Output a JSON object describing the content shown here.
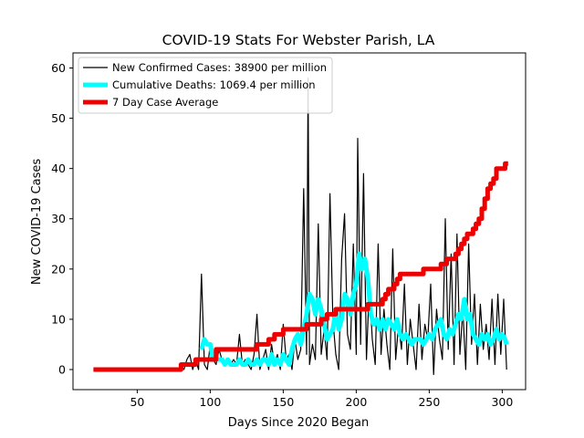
{
  "chart_data": {
    "type": "line",
    "title": "COVID-19 Stats For Webster Parish, LA",
    "xlabel": "Days Since 2020 Began",
    "ylabel": "New COVID-19 Cases",
    "xlim": [
      6,
      316
    ],
    "ylim": [
      -4,
      63
    ],
    "xticks": [
      50,
      100,
      150,
      200,
      250,
      300
    ],
    "yticks": [
      0,
      10,
      20,
      30,
      40,
      50,
      60
    ],
    "grid": false,
    "legend_position": "top-left",
    "series": [
      {
        "name": "New Confirmed Cases: 38900 per million",
        "color": "#000000",
        "width": 1.2,
        "points": [
          [
            20,
            0
          ],
          [
            78,
            0
          ],
          [
            80,
            1
          ],
          [
            82,
            0
          ],
          [
            84,
            2
          ],
          [
            86,
            3
          ],
          [
            88,
            0
          ],
          [
            90,
            2
          ],
          [
            92,
            0
          ],
          [
            94,
            19
          ],
          [
            96,
            1
          ],
          [
            98,
            0
          ],
          [
            100,
            5
          ],
          [
            102,
            2
          ],
          [
            104,
            1
          ],
          [
            106,
            4
          ],
          [
            108,
            2
          ],
          [
            110,
            1
          ],
          [
            112,
            2
          ],
          [
            114,
            1
          ],
          [
            116,
            2
          ],
          [
            118,
            1
          ],
          [
            120,
            7
          ],
          [
            122,
            1
          ],
          [
            124,
            2
          ],
          [
            126,
            1
          ],
          [
            128,
            0
          ],
          [
            130,
            3
          ],
          [
            132,
            11
          ],
          [
            134,
            0
          ],
          [
            136,
            2
          ],
          [
            138,
            4
          ],
          [
            140,
            0
          ],
          [
            142,
            5
          ],
          [
            144,
            1
          ],
          [
            146,
            3
          ],
          [
            148,
            0
          ],
          [
            150,
            9
          ],
          [
            152,
            2
          ],
          [
            154,
            3
          ],
          [
            156,
            0
          ],
          [
            158,
            6
          ],
          [
            160,
            2
          ],
          [
            162,
            4
          ],
          [
            164,
            36
          ],
          [
            166,
            3
          ],
          [
            167,
            58
          ],
          [
            168,
            1
          ],
          [
            170,
            5
          ],
          [
            172,
            2
          ],
          [
            174,
            29
          ],
          [
            176,
            3
          ],
          [
            178,
            8
          ],
          [
            180,
            2
          ],
          [
            182,
            35
          ],
          [
            184,
            10
          ],
          [
            186,
            3
          ],
          [
            188,
            0
          ],
          [
            190,
            22
          ],
          [
            192,
            31
          ],
          [
            194,
            7
          ],
          [
            196,
            4
          ],
          [
            198,
            25
          ],
          [
            200,
            3
          ],
          [
            201,
            46
          ],
          [
            203,
            5
          ],
          [
            205,
            39
          ],
          [
            207,
            2
          ],
          [
            209,
            17
          ],
          [
            211,
            6
          ],
          [
            213,
            1
          ],
          [
            215,
            25
          ],
          [
            217,
            3
          ],
          [
            219,
            12
          ],
          [
            221,
            5
          ],
          [
            223,
            0
          ],
          [
            225,
            24
          ],
          [
            227,
            2
          ],
          [
            229,
            9
          ],
          [
            231,
            4
          ],
          [
            233,
            17
          ],
          [
            235,
            1
          ],
          [
            237,
            10
          ],
          [
            239,
            5
          ],
          [
            241,
            0
          ],
          [
            243,
            13
          ],
          [
            245,
            2
          ],
          [
            247,
            9
          ],
          [
            249,
            6
          ],
          [
            251,
            17
          ],
          [
            253,
            -1
          ],
          [
            255,
            12
          ],
          [
            257,
            6
          ],
          [
            259,
            2
          ],
          [
            261,
            30
          ],
          [
            263,
            4
          ],
          [
            265,
            23
          ],
          [
            267,
            1
          ],
          [
            269,
            27
          ],
          [
            271,
            3
          ],
          [
            273,
            12
          ],
          [
            275,
            0
          ],
          [
            277,
            25
          ],
          [
            279,
            5
          ],
          [
            281,
            15
          ],
          [
            283,
            1
          ],
          [
            285,
            13
          ],
          [
            287,
            4
          ],
          [
            289,
            9
          ],
          [
            291,
            2
          ],
          [
            293,
            14
          ],
          [
            295,
            1
          ],
          [
            297,
            15
          ],
          [
            299,
            3
          ],
          [
            301,
            14
          ],
          [
            303,
            0
          ]
        ]
      },
      {
        "name": "Cumulative Deaths: 1069.4 per million",
        "color": "#00ffff",
        "width": 5,
        "points": [
          [
            94,
            4
          ],
          [
            96,
            6
          ],
          [
            98,
            5
          ],
          [
            100,
            5
          ],
          [
            102,
            2
          ],
          [
            104,
            2
          ],
          [
            106,
            2
          ],
          [
            108,
            2
          ],
          [
            110,
            1
          ],
          [
            112,
            2
          ],
          [
            114,
            1
          ],
          [
            116,
            1
          ],
          [
            118,
            1
          ],
          [
            120,
            2
          ],
          [
            122,
            1
          ],
          [
            124,
            1
          ],
          [
            126,
            2
          ],
          [
            128,
            1
          ],
          [
            130,
            1
          ],
          [
            132,
            2
          ],
          [
            134,
            1
          ],
          [
            136,
            2
          ],
          [
            138,
            2
          ],
          [
            140,
            1
          ],
          [
            142,
            3
          ],
          [
            144,
            1
          ],
          [
            146,
            2
          ],
          [
            148,
            1
          ],
          [
            150,
            3
          ],
          [
            152,
            2
          ],
          [
            154,
            1
          ],
          [
            156,
            4
          ],
          [
            158,
            6
          ],
          [
            160,
            7
          ],
          [
            162,
            5
          ],
          [
            164,
            8
          ],
          [
            166,
            11
          ],
          [
            168,
            15
          ],
          [
            170,
            14
          ],
          [
            172,
            11
          ],
          [
            174,
            14
          ],
          [
            176,
            12
          ],
          [
            178,
            9
          ],
          [
            180,
            6
          ],
          [
            182,
            7
          ],
          [
            184,
            8
          ],
          [
            186,
            12
          ],
          [
            188,
            8
          ],
          [
            190,
            10
          ],
          [
            192,
            15
          ],
          [
            194,
            14
          ],
          [
            196,
            11
          ],
          [
            198,
            15
          ],
          [
            200,
            17
          ],
          [
            202,
            23
          ],
          [
            204,
            20
          ],
          [
            206,
            22
          ],
          [
            208,
            18
          ],
          [
            210,
            11
          ],
          [
            212,
            9
          ],
          [
            214,
            10
          ],
          [
            216,
            8
          ],
          [
            218,
            10
          ],
          [
            220,
            8
          ],
          [
            222,
            10
          ],
          [
            224,
            9
          ],
          [
            226,
            8
          ],
          [
            228,
            10
          ],
          [
            230,
            7
          ],
          [
            232,
            6
          ],
          [
            234,
            7
          ],
          [
            236,
            6
          ],
          [
            238,
            5
          ],
          [
            240,
            6
          ],
          [
            242,
            6
          ],
          [
            244,
            6
          ],
          [
            246,
            5
          ],
          [
            248,
            6
          ],
          [
            250,
            7
          ],
          [
            252,
            6
          ],
          [
            254,
            8
          ],
          [
            256,
            9
          ],
          [
            258,
            10
          ],
          [
            260,
            7
          ],
          [
            262,
            6
          ],
          [
            264,
            8
          ],
          [
            266,
            7
          ],
          [
            268,
            9
          ],
          [
            270,
            11
          ],
          [
            272,
            10
          ],
          [
            274,
            14
          ],
          [
            276,
            10
          ],
          [
            278,
            11
          ],
          [
            280,
            7
          ],
          [
            282,
            6
          ],
          [
            284,
            5
          ],
          [
            286,
            7
          ],
          [
            288,
            6
          ],
          [
            290,
            7
          ],
          [
            292,
            5
          ],
          [
            294,
            6
          ],
          [
            296,
            8
          ],
          [
            298,
            6
          ],
          [
            300,
            7
          ],
          [
            302,
            6
          ],
          [
            303,
            5
          ]
        ]
      },
      {
        "name": "7 Day Case Average",
        "color": "#ee0000",
        "width": 5,
        "points": [
          [
            20,
            0
          ],
          [
            80,
            0
          ],
          [
            80,
            1
          ],
          [
            90,
            1
          ],
          [
            90,
            2
          ],
          [
            104,
            2
          ],
          [
            104,
            4
          ],
          [
            132,
            4
          ],
          [
            132,
            5
          ],
          [
            140,
            5
          ],
          [
            140,
            6
          ],
          [
            144,
            6
          ],
          [
            144,
            7
          ],
          [
            150,
            7
          ],
          [
            150,
            8
          ],
          [
            166,
            8
          ],
          [
            166,
            9
          ],
          [
            176,
            9
          ],
          [
            176,
            10
          ],
          [
            180,
            10
          ],
          [
            180,
            11
          ],
          [
            186,
            11
          ],
          [
            186,
            12
          ],
          [
            208,
            12
          ],
          [
            208,
            13
          ],
          [
            218,
            13
          ],
          [
            218,
            14
          ],
          [
            220,
            14
          ],
          [
            220,
            15
          ],
          [
            222,
            15
          ],
          [
            222,
            16
          ],
          [
            226,
            16
          ],
          [
            226,
            17
          ],
          [
            228,
            17
          ],
          [
            228,
            18
          ],
          [
            230,
            18
          ],
          [
            230,
            19
          ],
          [
            246,
            19
          ],
          [
            246,
            20
          ],
          [
            258,
            20
          ],
          [
            258,
            21
          ],
          [
            262,
            21
          ],
          [
            262,
            22
          ],
          [
            268,
            22
          ],
          [
            268,
            23
          ],
          [
            270,
            23
          ],
          [
            270,
            24
          ],
          [
            272,
            24
          ],
          [
            272,
            25
          ],
          [
            274,
            25
          ],
          [
            274,
            26
          ],
          [
            276,
            26
          ],
          [
            276,
            27
          ],
          [
            280,
            27
          ],
          [
            280,
            28
          ],
          [
            282,
            28
          ],
          [
            282,
            29
          ],
          [
            284,
            29
          ],
          [
            284,
            30
          ],
          [
            286,
            30
          ],
          [
            286,
            32
          ],
          [
            288,
            32
          ],
          [
            288,
            34
          ],
          [
            290,
            34
          ],
          [
            290,
            36
          ],
          [
            292,
            36
          ],
          [
            292,
            37
          ],
          [
            294,
            37
          ],
          [
            294,
            38
          ],
          [
            296,
            38
          ],
          [
            296,
            40
          ],
          [
            302,
            40
          ],
          [
            302,
            41
          ],
          [
            304,
            41
          ]
        ]
      }
    ]
  }
}
